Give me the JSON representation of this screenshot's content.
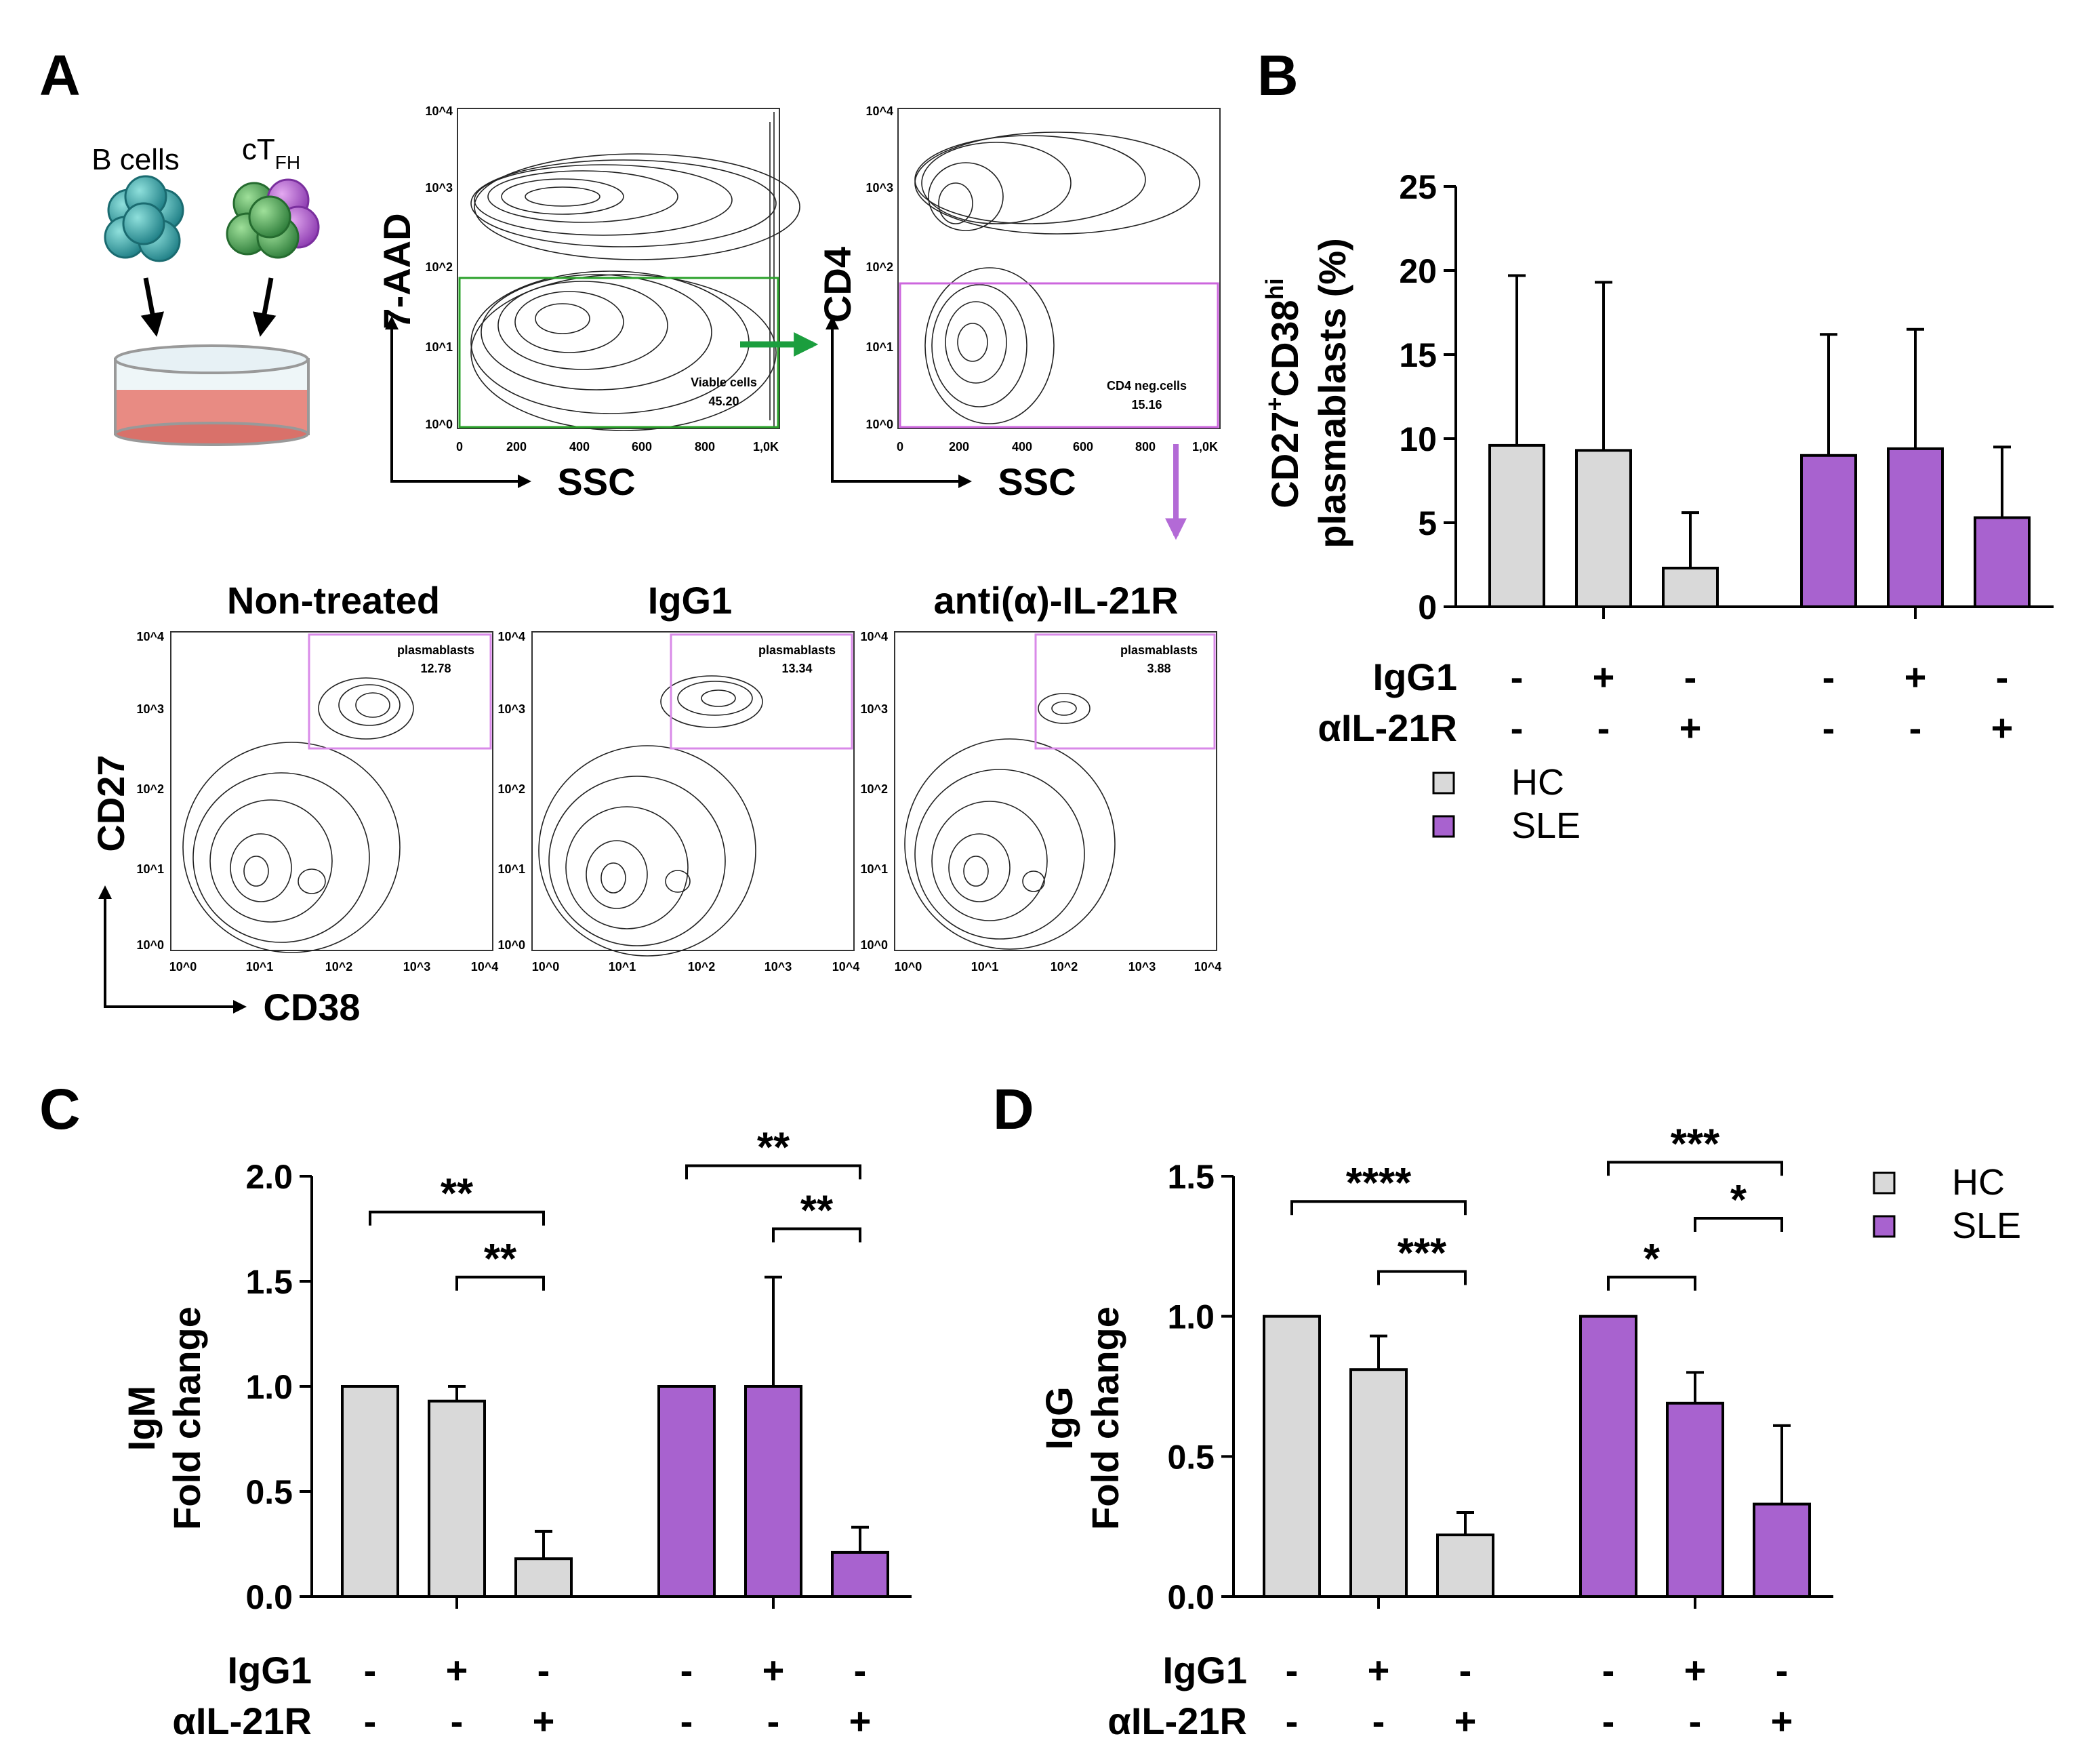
{
  "panels": {
    "A": "A",
    "B": "B",
    "C": "C",
    "D": "D"
  },
  "colors": {
    "hc": "#d9d9d9",
    "sle": "#a862cf",
    "viable_gate": "#2aa02a",
    "cd4_gate": "#cc66dd",
    "plasma_gate": "#d98ae8",
    "arrow_green": "#1b9e3e",
    "arrow_purple": "#b36ad6"
  },
  "cells": {
    "b_cells": "B cells",
    "ctfh_main": "cT",
    "ctfh_sub": "FH"
  },
  "flow": {
    "plot1": {
      "y_axis": "7-AAD",
      "x_axis": "SSC",
      "gate_name": "Viable cells",
      "gate_value": "45.20"
    },
    "plot2": {
      "y_axis": "CD4",
      "x_axis": "SSC",
      "gate_name": "CD4 neg.cells",
      "gate_value": "15.16"
    },
    "ssc_ticks": [
      "0",
      "200",
      "400",
      "600",
      "800",
      "1,0K"
    ],
    "log_ticks": [
      "10^0",
      "10^1",
      "10^2",
      "10^3",
      "10^4"
    ],
    "bottom_y_axis": "CD27",
    "bottom_x_axis": "CD38",
    "plots": [
      {
        "title": "Non-treated",
        "gate_name": "plasmablasts",
        "gate_value": "12.78"
      },
      {
        "title": "IgG1",
        "gate_name": "plasmablasts",
        "gate_value": "13.34"
      },
      {
        "title": "anti(α)-IL-21R",
        "gate_name": "plasmablasts",
        "gate_value": "3.88"
      }
    ]
  },
  "legend": {
    "hc": "HC",
    "sle": "SLE"
  },
  "conditions": {
    "row1_label": "IgG1",
    "row2_label": "αIL-21R",
    "row1": [
      "-",
      "+",
      "-",
      "-",
      "+",
      "-"
    ],
    "row2": [
      "-",
      "-",
      "+",
      "-",
      "-",
      "+"
    ]
  },
  "chart_data": [
    {
      "id": "B",
      "type": "bar",
      "ylabel_line1": "CD27",
      "ylabel_sup1": "+",
      "ylabel_mid": "CD38",
      "ylabel_sup2": "hi",
      "ylabel_line2": "plasmablasts (%)",
      "ylim": [
        0,
        25
      ],
      "yticks": [
        "0",
        "5",
        "10",
        "15",
        "20",
        "25"
      ],
      "groups": [
        "HC",
        "SLE"
      ],
      "series": [
        {
          "name": "HC",
          "values": [
            9.6,
            9.3,
            2.3
          ],
          "errors": [
            10.1,
            10.0,
            3.3
          ]
        },
        {
          "name": "SLE",
          "values": [
            9.0,
            9.4,
            5.3
          ],
          "errors": [
            7.2,
            7.1,
            4.2
          ]
        }
      ],
      "significance": []
    },
    {
      "id": "C",
      "type": "bar",
      "ylabel_line1": "IgM",
      "ylabel_line2": "Fold change",
      "ylim": [
        0,
        2.0
      ],
      "yticks": [
        "0.0",
        "0.5",
        "1.0",
        "1.5",
        "2.0"
      ],
      "groups": [
        "HC",
        "SLE"
      ],
      "series": [
        {
          "name": "HC",
          "values": [
            1.0,
            0.93,
            0.18
          ],
          "errors": [
            0,
            0.07,
            0.13
          ]
        },
        {
          "name": "SLE",
          "values": [
            1.0,
            1.0,
            0.21
          ],
          "errors": [
            0,
            0.52,
            0.12
          ]
        }
      ],
      "significance": [
        {
          "from": 0,
          "to": 2,
          "level": 1.83,
          "label": "**"
        },
        {
          "from": 1,
          "to": 2,
          "level": 1.52,
          "label": "**"
        },
        {
          "from": 3,
          "to": 5,
          "level": 2.05,
          "label": "**"
        },
        {
          "from": 4,
          "to": 5,
          "level": 1.75,
          "label": "**"
        }
      ]
    },
    {
      "id": "D",
      "type": "bar",
      "ylabel_line1": "IgG",
      "ylabel_line2": "Fold change",
      "ylim": [
        0,
        1.5
      ],
      "yticks": [
        "0.0",
        "0.5",
        "1.0",
        "1.5"
      ],
      "groups": [
        "HC",
        "SLE"
      ],
      "series": [
        {
          "name": "HC",
          "values": [
            1.0,
            0.81,
            0.22
          ],
          "errors": [
            0,
            0.12,
            0.08
          ]
        },
        {
          "name": "SLE",
          "values": [
            1.0,
            0.69,
            0.33
          ],
          "errors": [
            0,
            0.11,
            0.28
          ]
        }
      ],
      "significance": [
        {
          "from": 0,
          "to": 2,
          "level": 1.41,
          "label": "****"
        },
        {
          "from": 1,
          "to": 2,
          "level": 1.16,
          "label": "***"
        },
        {
          "from": 3,
          "to": 5,
          "level": 1.55,
          "label": "***"
        },
        {
          "from": 4,
          "to": 5,
          "level": 1.35,
          "label": "*"
        },
        {
          "from": 3,
          "to": 4,
          "level": 1.14,
          "label": "*"
        }
      ]
    }
  ]
}
